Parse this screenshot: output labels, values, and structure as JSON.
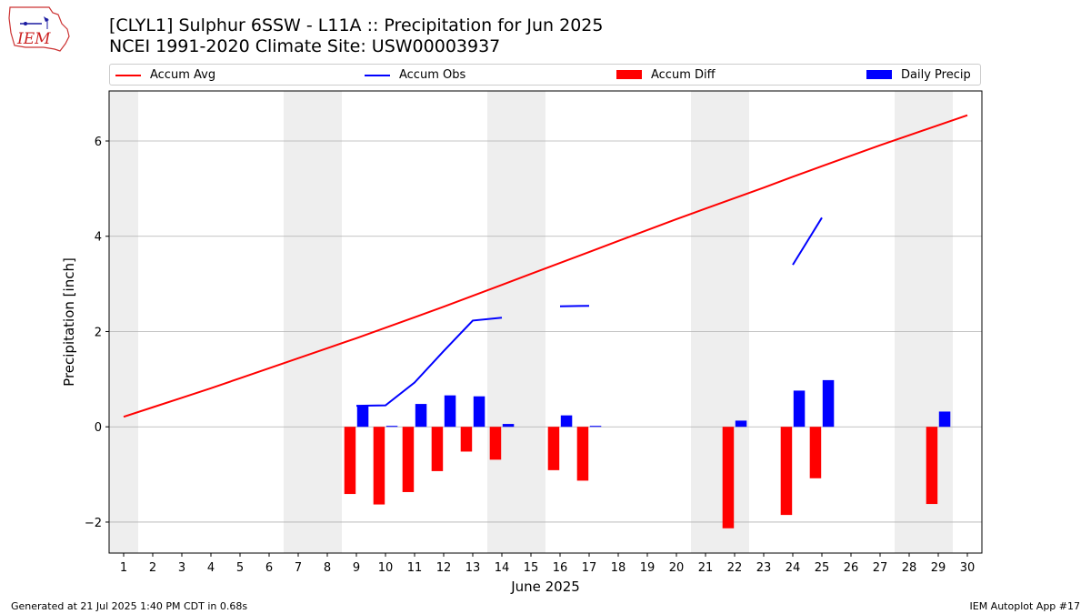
{
  "header": {
    "logo_text": "IEM",
    "title": "[CLYL1] Sulphur 6SSW - L11A :: Precipitation for Jun 2025",
    "subtitle": "NCEI 1991-2020 Climate Site: USW00003937"
  },
  "legend": {
    "accum_avg": "Accum Avg",
    "accum_obs": "Accum Obs",
    "accum_diff": "Accum Diff",
    "daily_precip": "Daily Precip"
  },
  "footer": {
    "left": "Generated at 21 Jul 2025 1:40 PM CDT in 0.68s",
    "right": "IEM Autoplot App #17"
  },
  "colors": {
    "accum_avg": "#ff0000",
    "accum_obs": "#0000ff",
    "accum_diff": "#ff0000",
    "daily_precip": "#0000ff",
    "weekend_band": "#eeeeee",
    "grid": "#b0b0b0"
  },
  "chart_data": {
    "type": "bar",
    "xlabel": "June 2025",
    "ylabel": "Precipitation [inch]",
    "xlim": [
      0.5,
      30.5
    ],
    "ylim": [
      -2.65,
      7.05
    ],
    "yticks": [
      -2,
      0,
      2,
      4,
      6
    ],
    "ytick_labels": [
      "−2",
      "0",
      "2",
      "4",
      "6"
    ],
    "days": [
      1,
      2,
      3,
      4,
      5,
      6,
      7,
      8,
      9,
      10,
      11,
      12,
      13,
      14,
      15,
      16,
      17,
      18,
      19,
      20,
      21,
      22,
      23,
      24,
      25,
      26,
      27,
      28,
      29,
      30
    ],
    "weekend_days": [
      1,
      7,
      8,
      14,
      15,
      21,
      22,
      28,
      29
    ],
    "grid": true,
    "legend_position": "top",
    "series": [
      {
        "name": "Accum Avg",
        "kind": "line",
        "values": [
          0.21,
          0.41,
          0.61,
          0.81,
          1.02,
          1.23,
          1.44,
          1.65,
          1.86,
          2.08,
          2.3,
          2.52,
          2.75,
          2.98,
          3.21,
          3.44,
          3.67,
          3.9,
          4.13,
          4.36,
          4.58,
          4.8,
          5.02,
          5.25,
          5.47,
          5.69,
          5.91,
          6.12,
          6.33,
          6.54
        ]
      },
      {
        "name": "Accum Obs",
        "kind": "line",
        "values": [
          null,
          null,
          null,
          null,
          null,
          null,
          null,
          null,
          0.44,
          0.45,
          0.93,
          1.59,
          2.23,
          2.29,
          null,
          2.53,
          2.54,
          null,
          null,
          null,
          null,
          null,
          null,
          3.4,
          4.39,
          null,
          null,
          null,
          null,
          null
        ]
      },
      {
        "name": "Accum Diff",
        "kind": "bar",
        "values": [
          null,
          null,
          null,
          null,
          null,
          null,
          null,
          null,
          -1.41,
          -1.63,
          -1.37,
          -0.93,
          -0.52,
          -0.69,
          null,
          -0.91,
          -1.13,
          null,
          null,
          null,
          null,
          -2.13,
          null,
          -1.85,
          -1.08,
          null,
          null,
          null,
          -1.62,
          null
        ]
      },
      {
        "name": "Daily Precip",
        "kind": "bar",
        "values": [
          null,
          null,
          null,
          null,
          null,
          null,
          null,
          null,
          0.44,
          0.02,
          0.48,
          0.66,
          0.64,
          0.06,
          null,
          0.24,
          0.02,
          null,
          null,
          null,
          null,
          0.13,
          null,
          0.76,
          0.98,
          null,
          null,
          null,
          0.32,
          null
        ]
      }
    ]
  }
}
